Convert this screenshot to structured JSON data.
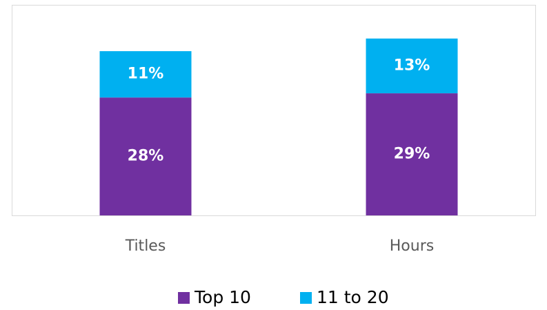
{
  "chart_data": {
    "type": "stacked_bar",
    "categories": [
      "Titles",
      "Hours"
    ],
    "series": [
      {
        "name": "Top 10",
        "color": "#7030a0",
        "values": [
          28,
          29
        ],
        "value_labels": [
          "28%",
          "29%"
        ]
      },
      {
        "name": "11 to 20",
        "color": "#00b0f0",
        "values": [
          11,
          13
        ],
        "value_labels": [
          "11%",
          "13%"
        ]
      }
    ],
    "legend": "bottom"
  }
}
